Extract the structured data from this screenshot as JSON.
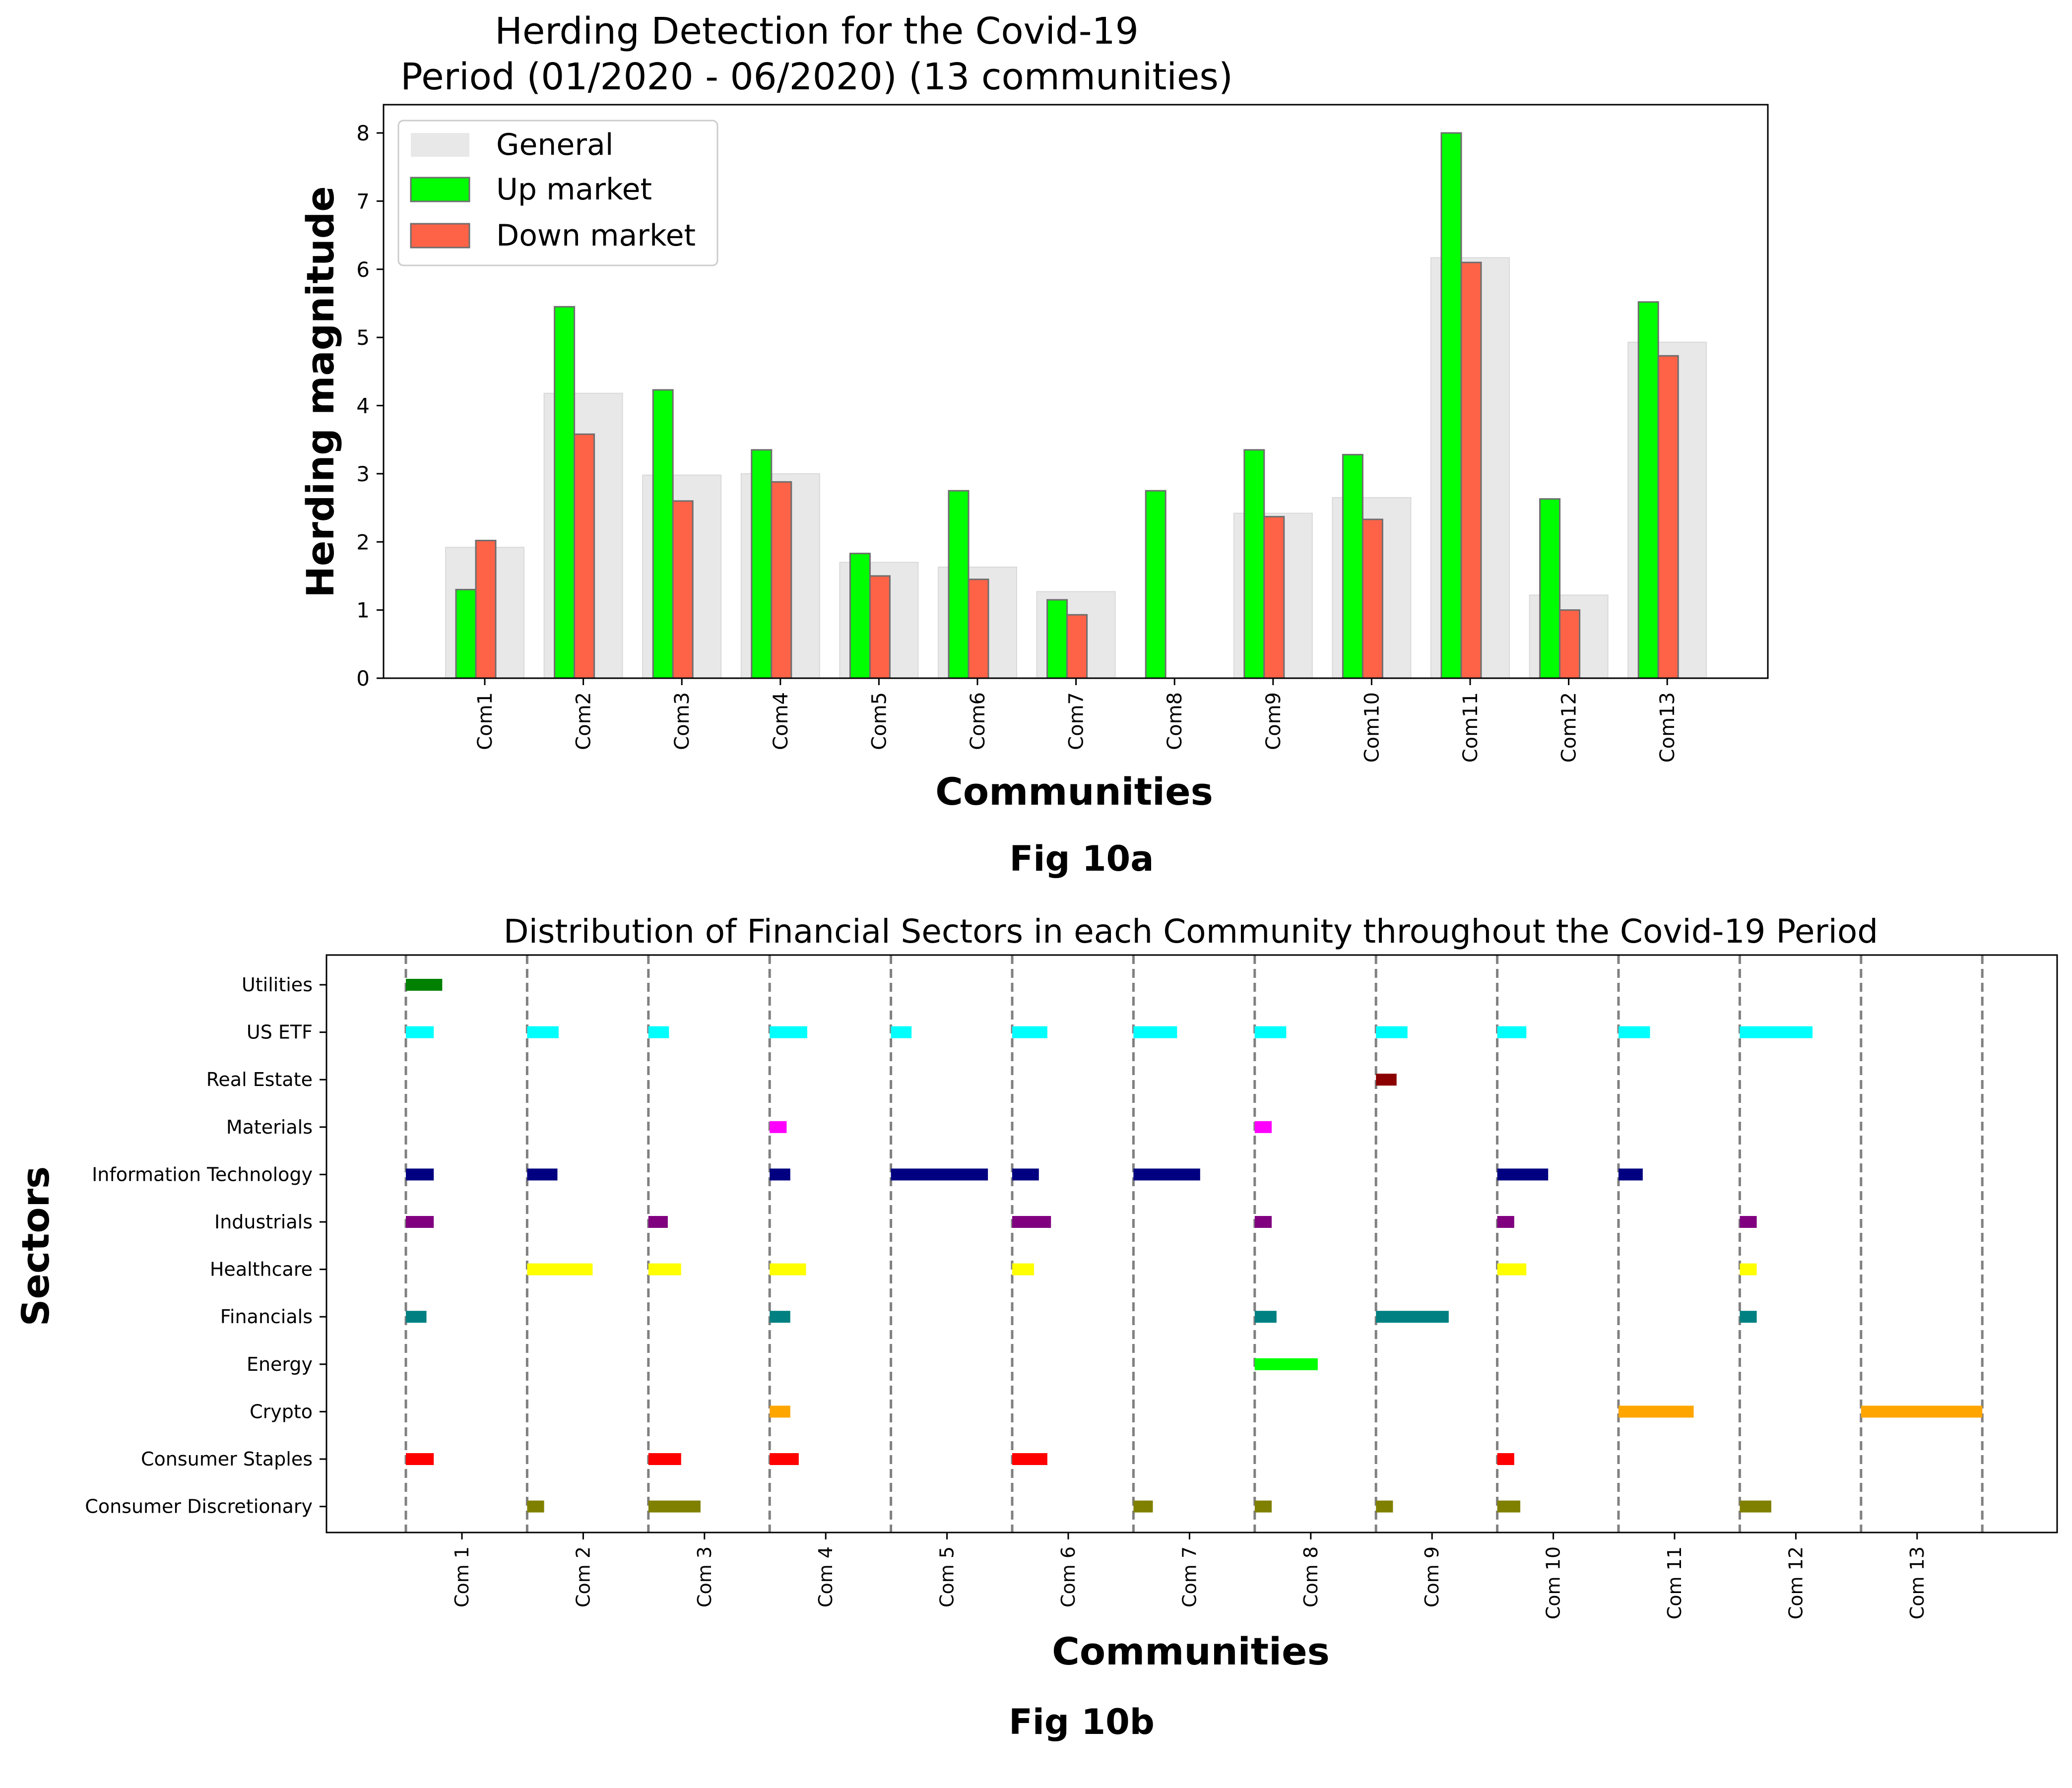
{
  "chart_data": [
    {
      "type": "bar",
      "title_line1": "Herding Detection for the Covid-19",
      "title_line2": "Period (01/2020 - 06/2020) (13 communities)",
      "xlabel": "Communities",
      "ylabel": "Herding magnitude",
      "caption": "Fig 10a",
      "ylim": [
        0,
        8.5
      ],
      "yticks": [
        "0",
        "1",
        "2",
        "3",
        "4",
        "5",
        "6",
        "7",
        "8"
      ],
      "categories": [
        "Com1",
        "Com2",
        "Com3",
        "Com4",
        "Com5",
        "Com6",
        "Com7",
        "Com8",
        "Com9",
        "Com10",
        "Com11",
        "Com12",
        "Com13"
      ],
      "legend_position": "upper-left",
      "series": [
        {
          "name": "General",
          "color": "#e8e8e8",
          "values": [
            1.92,
            4.18,
            2.98,
            3.0,
            1.7,
            1.63,
            1.27,
            0,
            2.42,
            2.65,
            6.17,
            1.22,
            4.93
          ]
        },
        {
          "name": "Up market",
          "color": "#00ff00",
          "values": [
            1.3,
            5.45,
            4.23,
            3.35,
            1.83,
            2.75,
            1.15,
            2.75,
            3.35,
            3.28,
            8.0,
            2.63,
            5.52
          ]
        },
        {
          "name": "Down market",
          "color": "#ff6347",
          "values": [
            2.02,
            3.58,
            2.6,
            2.88,
            1.5,
            1.45,
            0.93,
            0,
            2.37,
            2.33,
            6.1,
            1.0,
            4.73
          ]
        }
      ]
    },
    {
      "type": "bar",
      "title": "Distribution of Financial Sectors in each Community throughout the Covid-19 Period",
      "xlabel": "Communities",
      "ylabel": "Sectors",
      "caption": "Fig 10b",
      "communities": [
        "Com 1",
        "Com 2",
        "Com 3",
        "Com 4",
        "Com 5",
        "Com 6",
        "Com 7",
        "Com 8",
        "Com 9",
        "Com 10",
        "Com 11",
        "Com 12",
        "Com 13"
      ],
      "sectors": [
        {
          "name": "Utilities",
          "color": "#008000",
          "values": [
            0.3,
            0,
            0,
            0,
            0,
            0,
            0,
            0,
            0,
            0,
            0,
            0,
            0
          ]
        },
        {
          "name": "US ETF",
          "color": "#00ffff",
          "values": [
            0.23,
            0.26,
            0.17,
            0.31,
            0.17,
            0.29,
            0.36,
            0.26,
            0.26,
            0.24,
            0.26,
            0.6,
            0
          ]
        },
        {
          "name": "Real Estate",
          "color": "#8b0000",
          "values": [
            0,
            0,
            0,
            0,
            0,
            0,
            0,
            0,
            0.17,
            0,
            0,
            0,
            0
          ]
        },
        {
          "name": "Materials",
          "color": "#ff00ff",
          "values": [
            0,
            0,
            0,
            0.14,
            0,
            0,
            0,
            0.14,
            0,
            0,
            0,
            0,
            0
          ]
        },
        {
          "name": "Information Technology",
          "color": "#000080",
          "values": [
            0.23,
            0.25,
            0,
            0.17,
            0.8,
            0.22,
            0.55,
            0,
            0,
            0.42,
            0.2,
            0,
            0
          ]
        },
        {
          "name": "Industrials",
          "color": "#800080",
          "values": [
            0.23,
            0,
            0.16,
            0,
            0,
            0.32,
            0,
            0.14,
            0,
            0.14,
            0,
            0.14,
            0
          ]
        },
        {
          "name": "Healthcare",
          "color": "#ffff00",
          "values": [
            0,
            0.54,
            0.27,
            0.3,
            0,
            0.18,
            0,
            0,
            0,
            0.24,
            0,
            0.14,
            0
          ]
        },
        {
          "name": "Financials",
          "color": "#008080",
          "values": [
            0.17,
            0,
            0,
            0.17,
            0,
            0,
            0,
            0.18,
            0.6,
            0,
            0,
            0.14,
            0
          ]
        },
        {
          "name": "Energy",
          "color": "#00ff00",
          "values": [
            0,
            0,
            0,
            0,
            0,
            0,
            0,
            0.52,
            0,
            0,
            0,
            0,
            0
          ]
        },
        {
          "name": "Crypto",
          "color": "#ffa500",
          "values": [
            0,
            0,
            0,
            0.17,
            0,
            0,
            0,
            0,
            0,
            0,
            0.62,
            0,
            1.0
          ]
        },
        {
          "name": "Consumer Staples",
          "color": "#ff0000",
          "values": [
            0.23,
            0,
            0.27,
            0.24,
            0,
            0.29,
            0,
            0,
            0,
            0.14,
            0,
            0,
            0
          ]
        },
        {
          "name": "Consumer Discretionary",
          "color": "#808000",
          "values": [
            0,
            0.14,
            0.43,
            0,
            0,
            0,
            0.16,
            0.14,
            0.14,
            0.19,
            0,
            0.26,
            0
          ]
        }
      ]
    }
  ]
}
